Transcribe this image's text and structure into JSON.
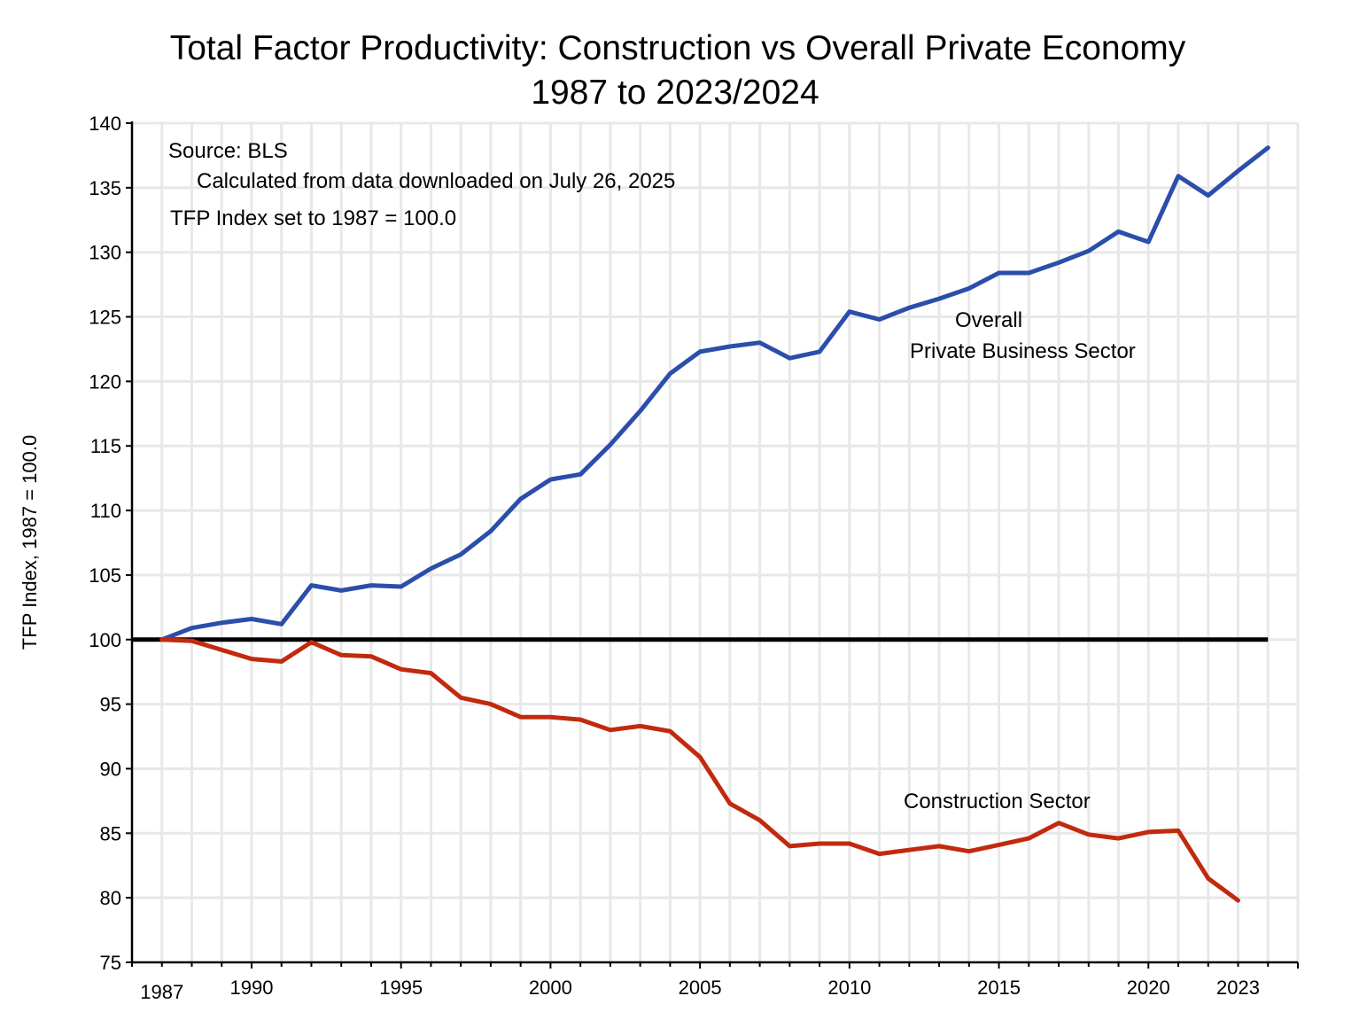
{
  "chart_data": {
    "type": "line",
    "title": "Total Factor Productivity:  Construction vs Overall Private Economy",
    "subtitle": "1987 to 2023/2024",
    "xlabel": "",
    "ylabel": "TFP Index, 1987 = 100.0",
    "xlim": [
      1986,
      2025
    ],
    "ylim": [
      75,
      140
    ],
    "grid": true,
    "x_tick_labels": [
      "1987",
      "1990",
      "1995",
      "2000",
      "2005",
      "2010",
      "2015",
      "2020",
      "2023"
    ],
    "x_tick_label_years": [
      1987,
      1990,
      1995,
      2000,
      2005,
      2010,
      2015,
      2020,
      2023
    ],
    "y_ticks": [
      75,
      80,
      85,
      90,
      95,
      100,
      105,
      110,
      115,
      120,
      125,
      130,
      135,
      140
    ],
    "y_tick_labels": [
      "75",
      "80",
      "85",
      "90",
      "95",
      "100",
      "105",
      "110",
      "115",
      "120",
      "125",
      "130",
      "135",
      "140"
    ],
    "annotations": {
      "source": "Source:  BLS",
      "calc": "Calculated from data downloaded on July 26, 2025",
      "index": "TFP Index set to 1987 = 100.0",
      "overall_line1": "Overall",
      "overall_line2": "Private Business Sector",
      "construction": "Construction Sector"
    },
    "reference_line": {
      "name": "Baseline 100",
      "y": 100,
      "x_range": [
        1986,
        2024
      ],
      "color": "#000000"
    },
    "series": [
      {
        "name": "Overall Private Business Sector",
        "color": "#2b4eab",
        "x": [
          1987,
          1988,
          1989,
          1990,
          1991,
          1992,
          1993,
          1994,
          1995,
          1996,
          1997,
          1998,
          1999,
          2000,
          2001,
          2002,
          2003,
          2004,
          2005,
          2006,
          2007,
          2008,
          2009,
          2010,
          2011,
          2012,
          2013,
          2014,
          2015,
          2016,
          2017,
          2018,
          2019,
          2020,
          2021,
          2022,
          2023,
          2024
        ],
        "values": [
          100.0,
          100.9,
          101.3,
          101.6,
          101.2,
          104.2,
          103.8,
          104.2,
          104.1,
          105.5,
          106.6,
          108.4,
          110.9,
          112.4,
          112.8,
          115.1,
          117.7,
          120.6,
          122.3,
          122.7,
          123.0,
          121.8,
          122.3,
          125.4,
          124.8,
          125.7,
          126.4,
          127.2,
          128.4,
          128.4,
          129.2,
          130.1,
          131.6,
          130.8,
          135.9,
          134.4,
          136.3,
          138.1
        ]
      },
      {
        "name": "Construction Sector",
        "color": "#c12a0e",
        "x": [
          1987,
          1988,
          1989,
          1990,
          1991,
          1992,
          1993,
          1994,
          1995,
          1996,
          1997,
          1998,
          1999,
          2000,
          2001,
          2002,
          2003,
          2004,
          2005,
          2006,
          2007,
          2008,
          2009,
          2010,
          2011,
          2012,
          2013,
          2014,
          2015,
          2016,
          2017,
          2018,
          2019,
          2020,
          2021,
          2022,
          2023
        ],
        "values": [
          100.0,
          99.9,
          99.2,
          98.5,
          98.3,
          99.8,
          98.8,
          98.7,
          97.7,
          97.4,
          95.5,
          95.0,
          94.0,
          94.0,
          93.8,
          93.0,
          93.3,
          92.9,
          90.9,
          87.3,
          86.0,
          84.0,
          84.2,
          84.2,
          83.4,
          83.7,
          84.0,
          83.6,
          84.1,
          84.6,
          85.8,
          84.9,
          84.6,
          85.1,
          85.2,
          81.5,
          79.8
        ]
      }
    ]
  }
}
